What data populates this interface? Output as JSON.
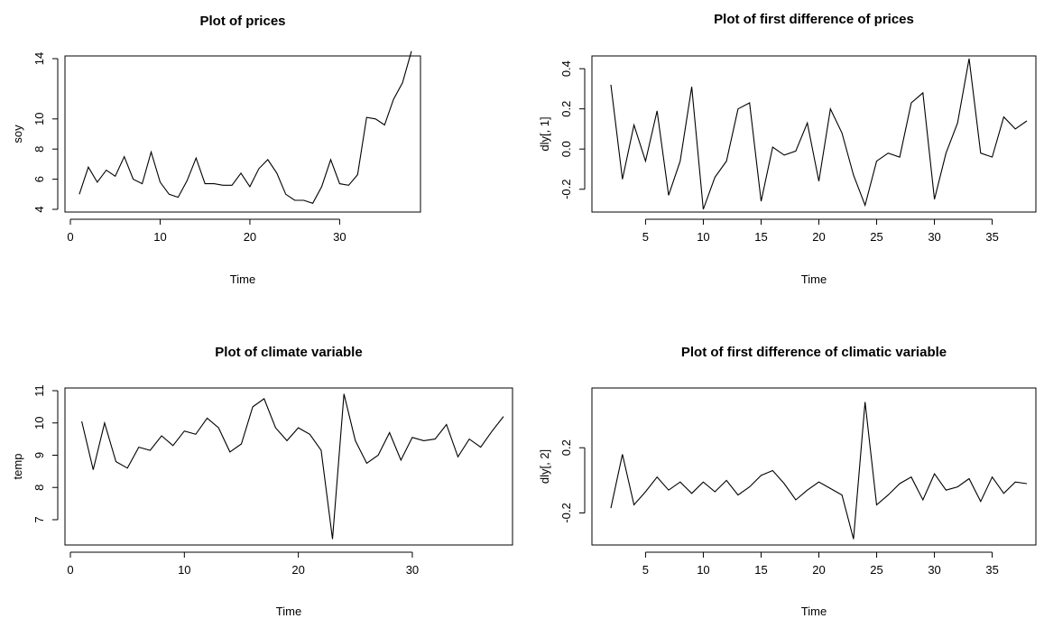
{
  "chart_data": [
    {
      "id": "prices",
      "type": "line",
      "title": "Plot of prices",
      "xlabel": "Time",
      "ylabel": "soy",
      "x_start": 1,
      "xlim": [
        0,
        38
      ],
      "xticks": [
        0,
        10,
        20,
        30
      ],
      "ylim": [
        4,
        14
      ],
      "yticks": [
        4,
        6,
        8,
        10,
        14
      ],
      "values": [
        5.0,
        6.8,
        5.8,
        6.6,
        6.2,
        7.5,
        6.0,
        5.7,
        7.8,
        5.8,
        5.0,
        4.8,
        5.9,
        7.4,
        5.7,
        5.7,
        5.6,
        5.6,
        6.4,
        5.5,
        6.7,
        7.3,
        6.4,
        5.0,
        4.6,
        4.6,
        4.4,
        5.5,
        7.3,
        5.7,
        5.6,
        6.3,
        10.1,
        10.0,
        9.6,
        11.3,
        12.4,
        14.5
      ]
    },
    {
      "id": "diff-prices",
      "type": "line",
      "title": "Plot of first difference of prices",
      "xlabel": "Time",
      "ylabel": "dly[, 1]",
      "x_start": 2,
      "xlim": [
        2,
        38
      ],
      "xticks": [
        5,
        10,
        15,
        20,
        25,
        30,
        35
      ],
      "ylim": [
        -0.3,
        0.45
      ],
      "yticks": [
        -0.2,
        0.0,
        0.2,
        0.4
      ],
      "ytick_labels": [
        "-0.2",
        "0.0",
        "0.2",
        "0.4"
      ],
      "values": [
        0.32,
        -0.15,
        0.12,
        -0.06,
        0.19,
        -0.23,
        -0.06,
        0.31,
        -0.3,
        -0.14,
        -0.06,
        0.2,
        0.23,
        -0.26,
        0.01,
        -0.03,
        -0.01,
        0.13,
        -0.16,
        0.2,
        0.08,
        -0.13,
        -0.28,
        -0.06,
        -0.02,
        -0.04,
        0.23,
        0.28,
        -0.25,
        -0.02,
        0.13,
        0.45,
        -0.02,
        -0.04,
        0.16,
        0.1,
        0.14
      ]
    },
    {
      "id": "climate",
      "type": "line",
      "title": "Plot of climate variable",
      "xlabel": "Time",
      "ylabel": "temp",
      "x_start": 1,
      "xlim": [
        0,
        38
      ],
      "xticks": [
        0,
        10,
        20,
        30
      ],
      "ylim": [
        6.3,
        11
      ],
      "yticks": [
        7,
        8,
        9,
        10,
        11
      ],
      "values": [
        10.05,
        8.55,
        10.0,
        8.8,
        8.6,
        9.25,
        9.15,
        9.6,
        9.3,
        9.75,
        9.65,
        10.15,
        9.85,
        9.1,
        9.35,
        10.5,
        10.75,
        9.85,
        9.45,
        9.85,
        9.65,
        9.15,
        6.4,
        10.9,
        9.45,
        8.75,
        9.0,
        9.7,
        8.85,
        9.55,
        9.45,
        9.5,
        9.95,
        8.95,
        9.5,
        9.25,
        9.75,
        10.2
      ]
    },
    {
      "id": "diff-climate",
      "type": "line",
      "title": "Plot of first difference of climatic variable",
      "xlabel": "Time",
      "ylabel": "dly[, 2]",
      "x_start": 2,
      "xlim": [
        2,
        38
      ],
      "xticks": [
        5,
        10,
        15,
        20,
        25,
        30,
        35
      ],
      "ylim": [
        -0.38,
        0.55
      ],
      "yticks": [
        -0.2,
        0.2
      ],
      "ytick_labels": [
        "-0.2",
        "0.2"
      ],
      "values": [
        -0.17,
        0.16,
        -0.15,
        -0.07,
        0.02,
        -0.06,
        -0.01,
        -0.08,
        -0.01,
        -0.07,
        0.0,
        -0.09,
        -0.04,
        0.03,
        0.06,
        -0.02,
        -0.12,
        -0.06,
        -0.01,
        -0.05,
        -0.09,
        -0.36,
        0.48,
        -0.15,
        -0.09,
        -0.02,
        0.02,
        -0.12,
        0.04,
        -0.06,
        -0.04,
        0.01,
        -0.13,
        0.02,
        -0.08,
        -0.01,
        -0.02
      ]
    }
  ]
}
